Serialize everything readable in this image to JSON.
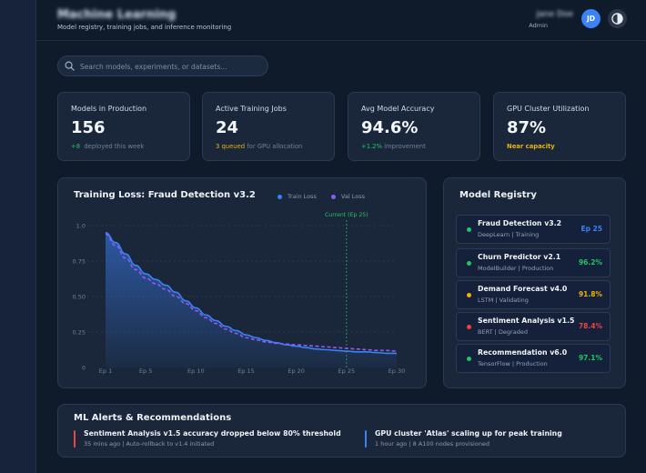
{
  "header": {
    "title": "Machine Learning",
    "subtitle": "Model registry, training jobs, and inference monitoring",
    "user_name": "Jane Doe",
    "user_role": "Admin",
    "avatar_initials": "JD"
  },
  "search": {
    "placeholder": "Search models, experiments, or datasets..."
  },
  "kpis": [
    {
      "label": "Models in Production",
      "value": "156",
      "delta": "+8",
      "note": "deployed this week"
    },
    {
      "label": "Active Training Jobs",
      "value": "24",
      "delta": "3 queued",
      "note": "for GPU allocation"
    },
    {
      "label": "Avg Model Accuracy",
      "value": "94.6%",
      "delta": "+1.2%",
      "note": "improvement"
    },
    {
      "label": "GPU Cluster Utilization",
      "value": "87%",
      "delta": "Near capacity",
      "note": ""
    }
  ],
  "chart_panel": {
    "title": "Training Loss: Fraud Detection v3.2",
    "marker_label": "Current (Ep 25)"
  },
  "chart_data": {
    "type": "area",
    "title": "Training Loss: Fraud Detection v3.2",
    "x": [
      "Ep 1",
      "Ep 2",
      "Ep 3",
      "Ep 4",
      "Ep 5",
      "Ep 6",
      "Ep 7",
      "Ep 8",
      "Ep 9",
      "Ep 10",
      "Ep 11",
      "Ep 12",
      "Ep 13",
      "Ep 14",
      "Ep 15",
      "Ep 16",
      "Ep 17",
      "Ep 18",
      "Ep 19",
      "Ep 20",
      "Ep 21",
      "Ep 22",
      "Ep 23",
      "Ep 24",
      "Ep 25",
      "Ep 26",
      "Ep 27",
      "Ep 28",
      "Ep 29",
      "Ep 30"
    ],
    "x_tick_labels": [
      "Ep 1",
      "Ep 5",
      "Ep 10",
      "Ep 15",
      "Ep 20",
      "Ep 25",
      "Ep 30"
    ],
    "series": [
      {
        "name": "Train Loss",
        "color": "#3b82f6",
        "dash": false,
        "values": [
          0.95,
          0.88,
          0.8,
          0.72,
          0.66,
          0.62,
          0.58,
          0.53,
          0.47,
          0.42,
          0.37,
          0.33,
          0.29,
          0.26,
          0.23,
          0.21,
          0.19,
          0.175,
          0.16,
          0.15,
          0.14,
          0.13,
          0.125,
          0.12,
          0.115,
          0.11,
          0.11,
          0.105,
          0.1,
          0.1
        ]
      },
      {
        "name": "Val Loss",
        "color": "#8b5cf6",
        "dash": true,
        "values": [
          0.94,
          0.86,
          0.77,
          0.69,
          0.63,
          0.59,
          0.55,
          0.5,
          0.45,
          0.4,
          0.35,
          0.31,
          0.27,
          0.24,
          0.21,
          0.195,
          0.18,
          0.17,
          0.165,
          0.16,
          0.155,
          0.15,
          0.145,
          0.14,
          0.135,
          0.13,
          0.125,
          0.12,
          0.12,
          0.115
        ]
      }
    ],
    "y_ticks": [
      0,
      0.25,
      0.5,
      0.75,
      1.0
    ],
    "y_tick_labels": [
      "0",
      "0.25",
      "0.50",
      "0.75",
      "1.0"
    ],
    "ylim": [
      0,
      1.0
    ],
    "marker_x": "Ep 25",
    "grid": true,
    "legend": "top"
  },
  "registry": {
    "title": "Model Registry",
    "items": [
      {
        "name": "Fraud Detection v3.2",
        "meta": "DeepLearn | Training",
        "score": "Ep 25",
        "status_color": "#22c55e",
        "score_color": "#3b82f6"
      },
      {
        "name": "Churn Predictor v2.1",
        "meta": "ModelBuilder | Production",
        "score": "96.2%",
        "status_color": "#22c55e",
        "score_color": "#22c55e"
      },
      {
        "name": "Demand Forecast v4.0",
        "meta": "LSTM | Validating",
        "score": "91.8%",
        "status_color": "#eab308",
        "score_color": "#eab308"
      },
      {
        "name": "Sentiment Analysis v1.5",
        "meta": "BERT | Degraded",
        "score": "78.4%",
        "status_color": "#ef4444",
        "score_color": "#ef4444"
      },
      {
        "name": "Recommendation v6.0",
        "meta": "TensorFlow | Production",
        "score": "97.1%",
        "status_color": "#22c55e",
        "score_color": "#22c55e"
      }
    ]
  },
  "alerts": {
    "title": "ML Alerts & Recommendations",
    "items": [
      {
        "title": "Sentiment Analysis v1.5 accuracy dropped below 80% threshold",
        "meta": "35 mins ago | Auto-rollback to v1.4 initiated",
        "color": "#ef4444"
      },
      {
        "title": "GPU cluster 'Atlas' scaling up for peak training",
        "meta": "1 hour ago | 8 A100 nodes provisioned",
        "color": "#3b82f6"
      }
    ]
  }
}
